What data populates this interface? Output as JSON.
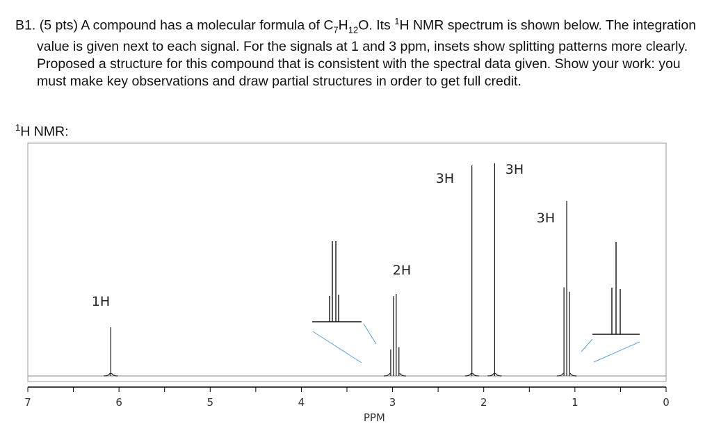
{
  "question": {
    "number": "B1.",
    "points": "(5 pts)",
    "text_before_formula": "A compound has a molecular formula of C",
    "formula_sub1": "7",
    "formula_mid": "H",
    "formula_sub2": "12",
    "formula_end": "O.  Its ",
    "sup": "1",
    "text_after": "H NMR spectrum is shown below.  The integration value is given next to each signal.  For the signals at 1 and 3 ppm, insets show splitting patterns more clearly.  Proposed a structure for this compound that is consistent with the spectral data given.  Show your work: you must make key observations and draw partial structures in order to get full credit."
  },
  "spectrum_label": {
    "sup": "1",
    "text": "H NMR:"
  },
  "chart_data": {
    "type": "line",
    "title": "1H NMR",
    "xlabel": "PPM",
    "ylabel": "",
    "xlim": [
      7,
      0
    ],
    "x_ticks": [
      "7",
      "6",
      "5",
      "4",
      "3",
      "2",
      "1",
      "0"
    ],
    "grid": false,
    "signals": [
      {
        "ppm": 6.09,
        "integration": "1H",
        "multiplicity": "singlet",
        "lines": [
          {
            "ppm": 6.09,
            "rel_height": 0.22
          }
        ]
      },
      {
        "ppm": 2.98,
        "integration": "2H",
        "multiplicity": "quartet",
        "lines": [
          {
            "ppm": 3.02,
            "rel_height": 0.12
          },
          {
            "ppm": 2.99,
            "rel_height": 0.36
          },
          {
            "ppm": 2.96,
            "rel_height": 0.37
          },
          {
            "ppm": 2.93,
            "rel_height": 0.13
          }
        ]
      },
      {
        "ppm": 2.13,
        "integration": "3H",
        "multiplicity": "singlet",
        "lines": [
          {
            "ppm": 2.13,
            "rel_height": 0.95
          }
        ]
      },
      {
        "ppm": 1.88,
        "integration": "3H",
        "multiplicity": "singlet",
        "lines": [
          {
            "ppm": 1.88,
            "rel_height": 0.96
          }
        ]
      },
      {
        "ppm": 1.09,
        "integration": "3H",
        "multiplicity": "triplet",
        "lines": [
          {
            "ppm": 1.12,
            "rel_height": 0.4
          },
          {
            "ppm": 1.09,
            "rel_height": 0.79
          },
          {
            "ppm": 1.06,
            "rel_height": 0.38
          }
        ]
      }
    ],
    "insets": [
      {
        "for_ppm": 3,
        "pattern": "quartet"
      },
      {
        "for_ppm": 1,
        "pattern": "triplet"
      }
    ]
  },
  "colors": {
    "spectrum": "#111111",
    "inset_lines": "#5aa0e0",
    "frame": "#999999"
  }
}
